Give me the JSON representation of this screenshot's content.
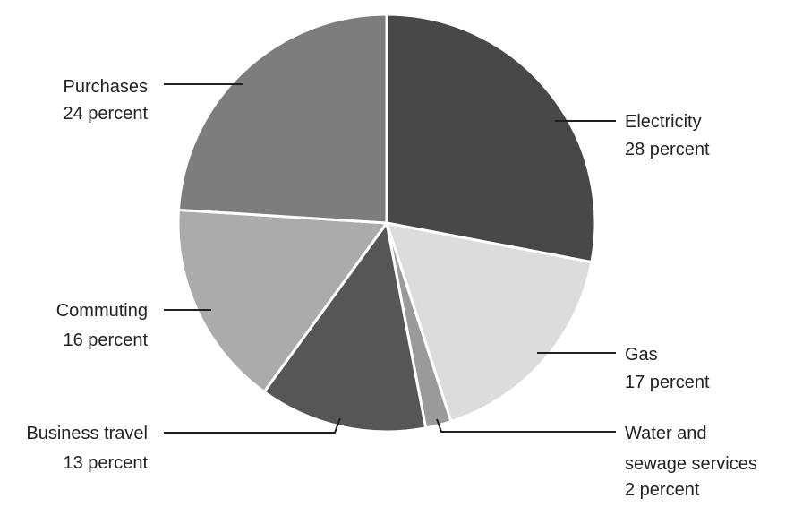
{
  "chart_data": {
    "type": "pie",
    "slices": [
      {
        "label": "Electricity",
        "value_text": "28 percent",
        "value": 28,
        "color": "#484848"
      },
      {
        "label": "Gas",
        "value_text": "17 percent",
        "value": 17,
        "color": "#dcdcdc"
      },
      {
        "label": "Water and sewage services",
        "value_text": "2 percent",
        "value": 2,
        "color": "#9a9a9a"
      },
      {
        "label": "Business travel",
        "value_text": "13 percent",
        "value": 13,
        "color": "#565656"
      },
      {
        "label": "Commuting",
        "value_text": "16 percent",
        "value": 16,
        "color": "#ababab"
      },
      {
        "label": "Purchases",
        "value_text": "24 percent",
        "value": 24,
        "color": "#7d7d7d"
      }
    ],
    "label_lines": {
      "electricity": [
        "Electricity",
        "28 percent"
      ],
      "gas": [
        "Gas",
        "17 percent"
      ],
      "water": [
        "Water and",
        "sewage services",
        "2 percent"
      ],
      "business_travel": [
        "Business travel",
        "13 percent"
      ],
      "commuting": [
        "Commuting",
        "16 percent"
      ],
      "purchases": [
        "Purchases",
        "24 percent"
      ]
    }
  }
}
